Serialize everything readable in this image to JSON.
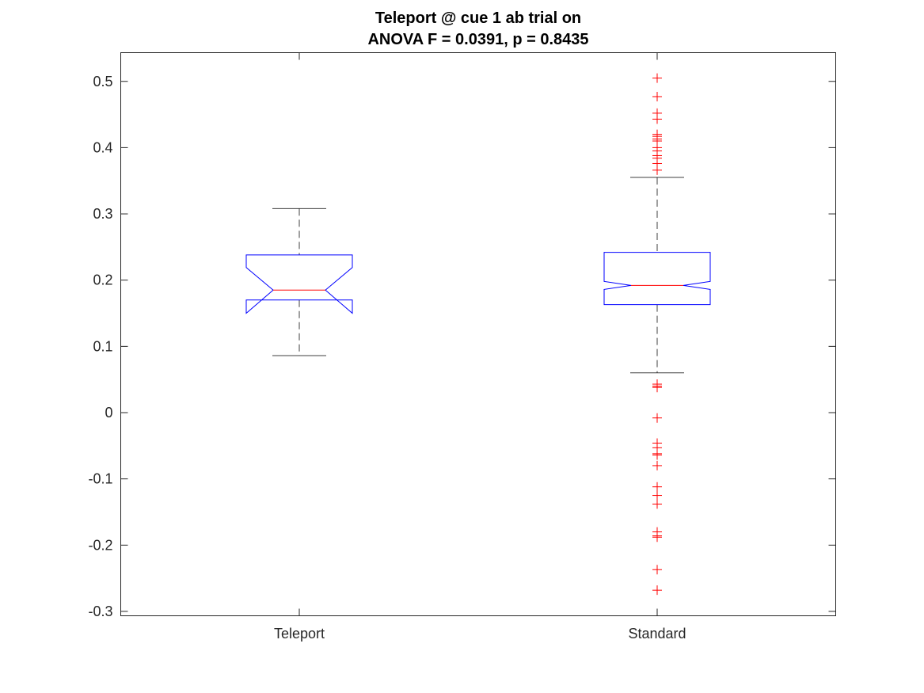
{
  "chart_data": {
    "type": "boxplot",
    "title": "Teleport @ cue 1 ab trial on",
    "subtitle": "ANOVA F = 0.0391, p = 0.8435",
    "xlabel": "",
    "ylabel": "",
    "ylim": [
      -0.31,
      0.545
    ],
    "yticks": [
      -0.3,
      -0.2,
      -0.1,
      0,
      0.1,
      0.2,
      0.3,
      0.4,
      0.5
    ],
    "ytick_labels": [
      "-0.3",
      "-0.2",
      "-0.1",
      "0",
      "0.1",
      "0.2",
      "0.3",
      "0.4",
      "0.5"
    ],
    "categories": [
      "Teleport",
      "Standard"
    ],
    "notched": true,
    "grid": false,
    "colors": {
      "box": "#0000ff",
      "median": "#ff0000",
      "whisker": "#000000",
      "outlier": "#ff0000",
      "axes": "#262626"
    },
    "boxes": [
      {
        "category": "Teleport",
        "q1": 0.17,
        "median": 0.185,
        "q3": 0.238,
        "notch_low": 0.15,
        "notch_high": 0.219,
        "whisker_low": 0.086,
        "whisker_high": 0.308,
        "outliers": []
      },
      {
        "category": "Standard",
        "q1": 0.163,
        "median": 0.192,
        "q3": 0.242,
        "notch_low": 0.186,
        "notch_high": 0.198,
        "whisker_low": 0.06,
        "whisker_high": 0.355,
        "outliers": [
          0.505,
          0.477,
          0.452,
          0.443,
          0.42,
          0.417,
          0.413,
          0.41,
          0.4,
          0.395,
          0.388,
          0.384,
          0.376,
          0.366,
          0.043,
          0.04,
          0.038,
          -0.008,
          -0.046,
          -0.053,
          -0.062,
          -0.064,
          -0.08,
          -0.112,
          -0.125,
          -0.138,
          -0.18,
          -0.186,
          -0.188,
          -0.237,
          -0.268
        ]
      }
    ]
  }
}
